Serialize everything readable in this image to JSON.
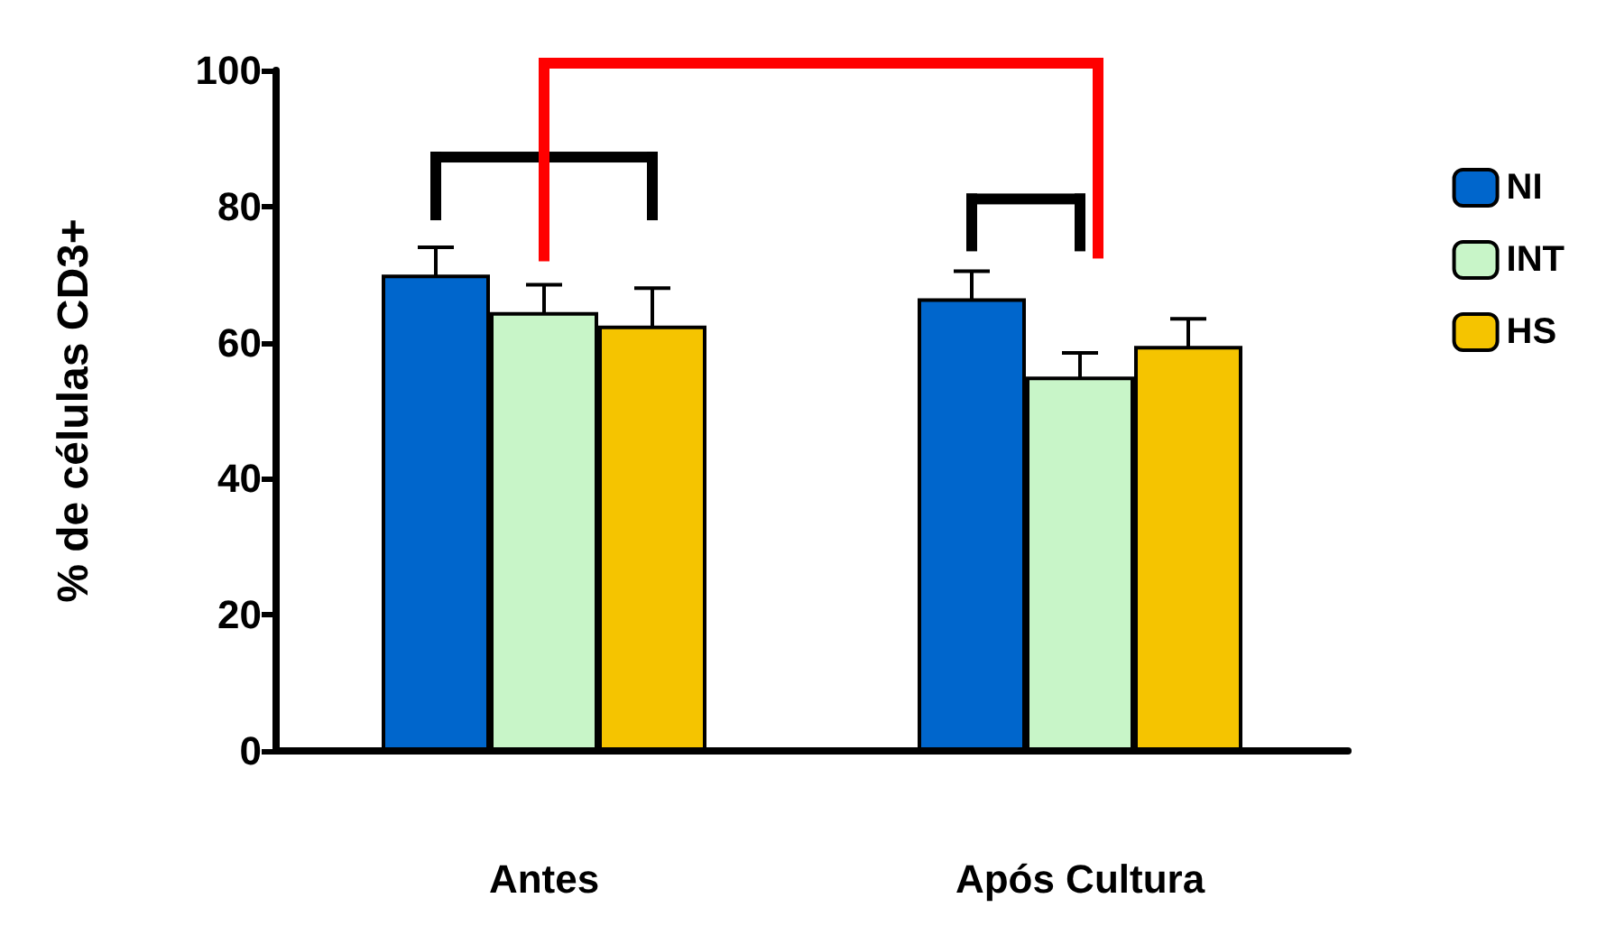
{
  "chart_data": {
    "type": "bar",
    "ylabel": "% de células CD3+",
    "categories": [
      "Antes",
      "Após Cultura"
    ],
    "series": [
      {
        "name": "NI",
        "color": "#0066cc",
        "values": [
          70,
          66.5
        ],
        "errors": [
          4,
          4
        ]
      },
      {
        "name": "INT",
        "color": "#c8f5c8",
        "values": [
          64.5,
          55
        ],
        "errors": [
          4,
          3.5
        ]
      },
      {
        "name": "HS",
        "color": "#f5c400",
        "values": [
          62.5,
          59.5
        ],
        "errors": [
          5.5,
          4
        ]
      }
    ],
    "ylim": [
      0,
      100
    ],
    "yticks": [
      0,
      20,
      40,
      60,
      80,
      100
    ],
    "grid": false,
    "legend": "right"
  }
}
